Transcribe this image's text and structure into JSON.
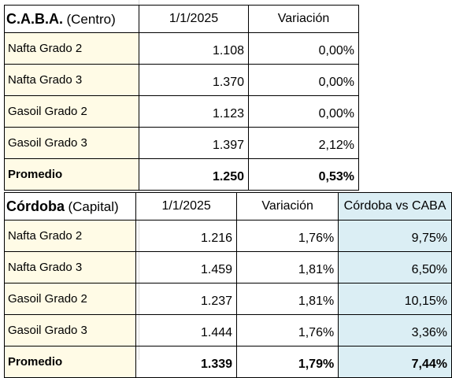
{
  "caba": {
    "city": "C.A.B.A.",
    "area": "(Centro)",
    "col_date": "1/1/2025",
    "col_change": "Variación",
    "rows": [
      {
        "label": "Nafta Grado 2",
        "price": "1.108",
        "change": "0,00%"
      },
      {
        "label": "Nafta Grado 3",
        "price": "1.370",
        "change": "0,00%"
      },
      {
        "label": "Gasoil Grado 2",
        "price": "1.123",
        "change": "0,00%"
      },
      {
        "label": "Gasoil Grado 3",
        "price": "1.397",
        "change": "2,12%"
      }
    ],
    "average": {
      "label": "Promedio",
      "price": "1.250",
      "change": "0,53%"
    }
  },
  "cordoba": {
    "city": "Córdoba",
    "area": "(Capital)",
    "col_date": "1/1/2025",
    "col_change": "Variación",
    "col_compare": "Córdoba vs CABA",
    "rows": [
      {
        "label": "Nafta Grado 2",
        "price": "1.216",
        "change": "1,76%",
        "compare": "9,75%"
      },
      {
        "label": "Nafta Grado 3",
        "price": "1.459",
        "change": "1,81%",
        "compare": "6,50%"
      },
      {
        "label": "Gasoil Grado 2",
        "price": "1.237",
        "change": "1,81%",
        "compare": "10,15%"
      },
      {
        "label": "Gasoil Grado 3",
        "price": "1.444",
        "change": "1,76%",
        "compare": "3,36%"
      }
    ],
    "average": {
      "label": "Promedio",
      "price": "1.339",
      "change": "1,79%",
      "compare": "7,44%"
    }
  },
  "colors": {
    "label_fill": "#fffbe6",
    "compare_fill": "#dbeef4",
    "border": "#000000"
  }
}
